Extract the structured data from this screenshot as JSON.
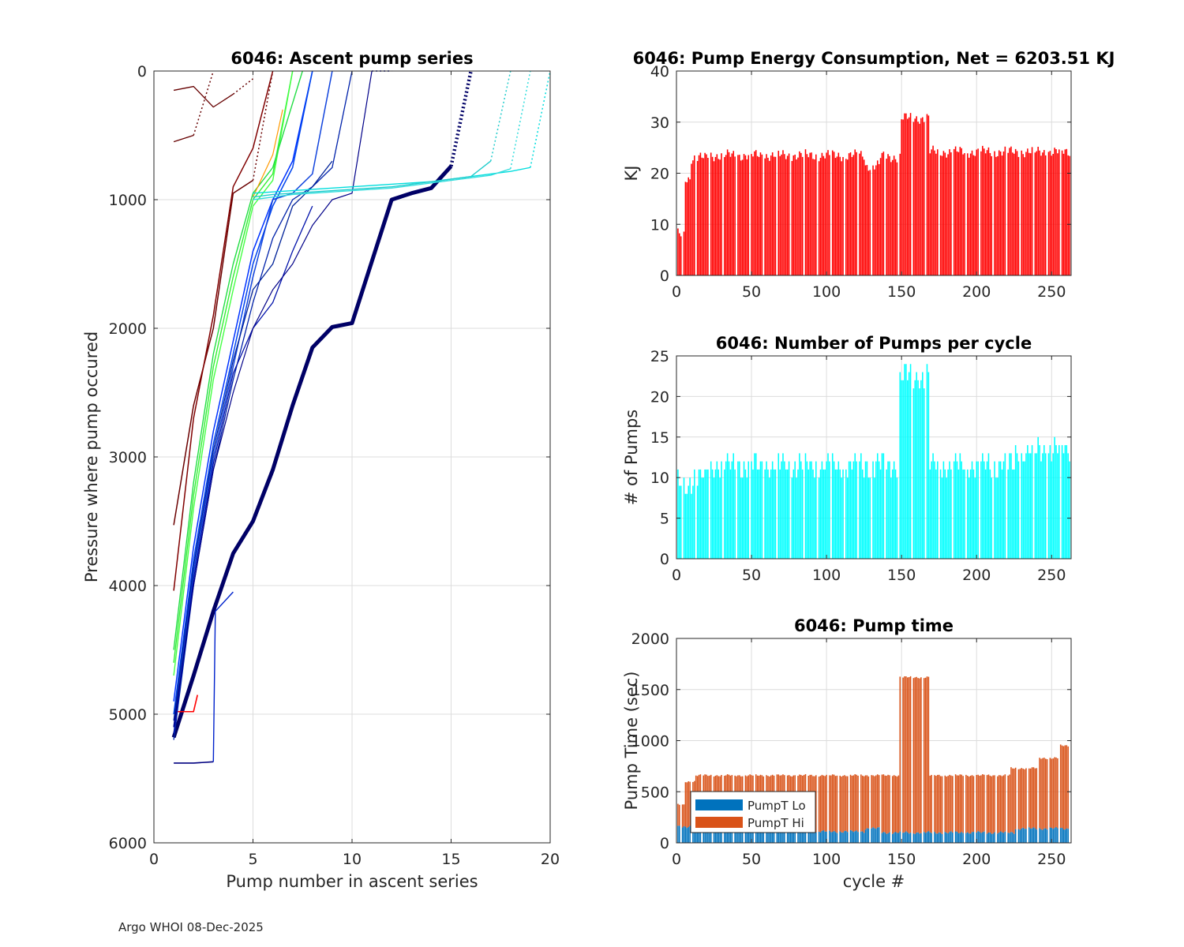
{
  "footer": "Argo WHOI 08-Dec-2025",
  "chart_data": [
    {
      "id": "ascent",
      "type": "line",
      "title": "6046: Ascent pump series",
      "xlabel": "Pump number in ascent series",
      "ylabel": "Pressure where pump occured",
      "xlim": [
        0,
        20
      ],
      "ylim": [
        0,
        6000
      ],
      "y_reversed": true,
      "xticks": [
        0,
        5,
        10,
        15,
        20
      ],
      "yticks": [
        0,
        1000,
        2000,
        3000,
        4000,
        5000,
        6000
      ],
      "grid": true,
      "series": [
        {
          "name": "thick-navy",
          "color": "#000066",
          "width": 5,
          "x": [
            1,
            2,
            3,
            4,
            5,
            6,
            7,
            8,
            9,
            10,
            11,
            12,
            13,
            14,
            15
          ],
          "y": [
            5180,
            4700,
            4200,
            3750,
            3500,
            3100,
            2600,
            2150,
            1990,
            1960,
            1480,
            1000,
            950,
            910,
            740
          ],
          "dotted_to": {
            "x": 16,
            "y": 0
          }
        },
        {
          "name": "navy-low",
          "color": "#000080",
          "width": 1.6,
          "x": [
            1,
            2,
            3
          ],
          "y": [
            5380,
            5380,
            5370
          ]
        },
        {
          "name": "blue-edge",
          "color": "#0022cc",
          "width": 1.4,
          "x": [
            3,
            3.1,
            4
          ],
          "y": [
            5370,
            4200,
            4050
          ]
        },
        {
          "name": "red-1",
          "color": "#ff0000",
          "width": 1.6,
          "x": [
            1,
            2,
            2.2
          ],
          "y": [
            4980,
            4980,
            4850
          ]
        },
        {
          "name": "maroon-1",
          "color": "#6b0000",
          "width": 1.5,
          "x": [
            1,
            2,
            3,
            4,
            5
          ],
          "y": [
            3530,
            2600,
            2000,
            950,
            850
          ],
          "dotted_to": {
            "x": 6,
            "y": 0
          }
        },
        {
          "name": "maroon-2",
          "color": "#800000",
          "width": 1.5,
          "x": [
            1,
            2,
            3,
            4,
            5,
            6
          ],
          "y": [
            4040,
            2700,
            1900,
            900,
            600,
            0
          ]
        },
        {
          "name": "maroon-3",
          "color": "#660000",
          "width": 1.3,
          "x": [
            1,
            2,
            3,
            4
          ],
          "y": [
            150,
            120,
            280,
            180
          ],
          "dotted_to": {
            "x": 5,
            "y": 60
          }
        },
        {
          "name": "maroon-4",
          "color": "#660000",
          "width": 1.3,
          "x": [
            1,
            2
          ],
          "y": [
            550,
            500
          ],
          "dotted_to": {
            "x": 3,
            "y": 0
          }
        },
        {
          "name": "green-1",
          "color": "#33ee33",
          "width": 1.4,
          "x": [
            1,
            2,
            3,
            4,
            5,
            6,
            7
          ],
          "y": [
            4600,
            3300,
            2300,
            1600,
            1000,
            800,
            0
          ]
        },
        {
          "name": "green-2",
          "color": "#44ff44",
          "width": 1.4,
          "x": [
            1,
            2,
            3,
            4,
            5,
            6,
            7
          ],
          "y": [
            4700,
            3400,
            2400,
            1700,
            1050,
            850,
            0
          ]
        },
        {
          "name": "green-3",
          "color": "#22dd44",
          "width": 1.4,
          "x": [
            1,
            2,
            3,
            4,
            5,
            6,
            7.5
          ],
          "y": [
            4500,
            3200,
            2200,
            1500,
            950,
            750,
            0
          ]
        },
        {
          "name": "orange-1",
          "color": "#ff9900",
          "width": 1.2,
          "x": [
            5,
            6,
            6.5
          ],
          "y": [
            980,
            650,
            300
          ]
        },
        {
          "name": "blue-1",
          "color": "#0033ff",
          "width": 1.5,
          "x": [
            1,
            2,
            3,
            4,
            5,
            6,
            7,
            8
          ],
          "y": [
            4900,
            3700,
            2800,
            2100,
            1400,
            1000,
            700,
            0
          ]
        },
        {
          "name": "blue-2",
          "color": "#0044ee",
          "width": 1.5,
          "x": [
            1,
            2,
            3,
            4,
            5,
            6,
            7,
            8
          ],
          "y": [
            5000,
            3800,
            2900,
            2200,
            1500,
            1050,
            750,
            0
          ]
        },
        {
          "name": "blue-3",
          "color": "#1144dd",
          "width": 1.5,
          "x": [
            1,
            2,
            3,
            4,
            5,
            6,
            7,
            8,
            9
          ],
          "y": [
            5100,
            3900,
            3000,
            2300,
            1600,
            1000,
            950,
            800,
            0
          ]
        },
        {
          "name": "blue-4",
          "color": "#0022aa",
          "width": 1.3,
          "x": [
            1,
            2,
            3,
            4,
            5,
            6,
            7,
            8,
            9,
            10
          ],
          "y": [
            5200,
            4000,
            3100,
            2400,
            1800,
            1300,
            1000,
            900,
            750,
            0
          ]
        },
        {
          "name": "blue-5",
          "color": "#002299",
          "width": 1.3,
          "x": [
            1,
            2,
            3,
            4,
            5,
            6,
            7,
            8,
            9
          ],
          "y": [
            5050,
            3850,
            2950,
            2250,
            1700,
            1500,
            1050,
            900,
            700
          ]
        },
        {
          "name": "blue-6",
          "color": "#0011aa",
          "width": 1.3,
          "x": [
            1,
            2,
            3,
            4,
            5,
            6,
            7,
            8
          ],
          "y": [
            5150,
            3950,
            3050,
            2350,
            2000,
            1800,
            1400,
            1050
          ]
        },
        {
          "name": "navy-2",
          "color": "#000088",
          "width": 1.2,
          "x": [
            1,
            2,
            3,
            4,
            5,
            6,
            7,
            8,
            9,
            10,
            11
          ],
          "y": [
            5100,
            4000,
            3100,
            2500,
            2000,
            1700,
            1500,
            1200,
            1000,
            950,
            0
          ],
          "dotted_to": {
            "x": 12,
            "y": 0
          }
        },
        {
          "name": "cyan-1",
          "color": "#00dddd",
          "width": 1.4,
          "x": [
            5,
            6,
            7,
            8,
            9,
            10,
            11,
            12,
            13,
            14,
            15,
            16,
            17,
            18,
            19
          ],
          "y": [
            950,
            940,
            930,
            920,
            910,
            900,
            890,
            880,
            870,
            860,
            840,
            820,
            800,
            780,
            750
          ],
          "dotted_to": {
            "x": 20,
            "y": 0
          }
        },
        {
          "name": "cyan-2",
          "color": "#22cccc",
          "width": 1.4,
          "x": [
            5,
            6,
            7,
            8,
            9,
            10,
            11,
            12,
            13,
            14,
            15,
            16,
            17
          ],
          "y": [
            980,
            960,
            950,
            940,
            930,
            920,
            910,
            900,
            880,
            860,
            840,
            820,
            700
          ],
          "dotted_to": {
            "x": 18,
            "y": 0
          }
        },
        {
          "name": "cyan-3",
          "color": "#33dddd",
          "width": 1.4,
          "x": [
            5,
            6,
            7,
            8,
            9,
            10,
            11,
            12,
            13,
            14,
            15,
            16,
            17,
            18
          ],
          "y": [
            1000,
            980,
            960,
            950,
            940,
            930,
            920,
            910,
            890,
            870,
            850,
            830,
            810,
            760
          ],
          "dotted_to": {
            "x": 19,
            "y": 0
          }
        }
      ]
    },
    {
      "id": "energy",
      "type": "bar",
      "title": "6046: Pump Energy Consumption,  Net = 6203.51 KJ",
      "xlabel": "",
      "ylabel": "KJ",
      "xlim": [
        0,
        263
      ],
      "ylim": [
        0,
        40
      ],
      "xticks": [
        0,
        50,
        100,
        150,
        200,
        250
      ],
      "yticks": [
        0,
        10,
        20,
        30,
        40
      ],
      "grid": true,
      "color": "#ff0000",
      "num_cycles": 262,
      "baseline": 23.5,
      "segments": [
        {
          "from": 1,
          "to": 5,
          "value": 8
        },
        {
          "from": 6,
          "to": 9,
          "value": 19
        },
        {
          "from": 10,
          "to": 20,
          "value": 23
        },
        {
          "from": 21,
          "to": 125,
          "value": 23.5
        },
        {
          "from": 126,
          "to": 135,
          "value": 21.5
        },
        {
          "from": 136,
          "to": 149,
          "value": 23.2
        },
        {
          "from": 150,
          "to": 168,
          "value": 30.8
        },
        {
          "from": 169,
          "to": 262,
          "value": 24.2
        }
      ]
    },
    {
      "id": "pumps",
      "type": "bar",
      "title": "6046: Number of Pumps per cycle",
      "xlabel": "",
      "ylabel": "# of Pumps",
      "xlim": [
        0,
        263
      ],
      "ylim": [
        0,
        25
      ],
      "xticks": [
        0,
        50,
        100,
        150,
        200,
        250
      ],
      "yticks": [
        0,
        5,
        10,
        15,
        20,
        25
      ],
      "grid": true,
      "color": "#00ffff",
      "num_cycles": 262,
      "segments": [
        {
          "from": 1,
          "to": 8,
          "value": 9
        },
        {
          "from": 9,
          "to": 20,
          "value": 10
        },
        {
          "from": 21,
          "to": 148,
          "value": 11.5
        },
        {
          "from": 149,
          "to": 168,
          "value": 22.5
        },
        {
          "from": 169,
          "to": 225,
          "value": 11.5
        },
        {
          "from": 226,
          "to": 240,
          "value": 13
        },
        {
          "from": 241,
          "to": 262,
          "value": 13.5
        }
      ]
    },
    {
      "id": "pumptime",
      "type": "bar",
      "stacked": true,
      "title": "6046: Pump time",
      "xlabel": "cycle #",
      "ylabel": "Pump Time (sec)",
      "xlim": [
        0,
        263
      ],
      "ylim": [
        0,
        2000
      ],
      "xticks": [
        0,
        50,
        100,
        150,
        200,
        250
      ],
      "yticks": [
        0,
        500,
        1000,
        1500,
        2000
      ],
      "grid": true,
      "legend": {
        "location": "bottom-left",
        "entries": [
          {
            "name": "PumpT Lo",
            "color": "#0072bd"
          },
          {
            "name": "PumpT Hi",
            "color": "#d95319"
          }
        ]
      },
      "num_cycles": 262,
      "lo_segments": [
        {
          "from": 1,
          "to": 10,
          "value": 160
        },
        {
          "from": 11,
          "to": 125,
          "value": 110
        },
        {
          "from": 126,
          "to": 135,
          "value": 140
        },
        {
          "from": 136,
          "to": 225,
          "value": 100
        },
        {
          "from": 226,
          "to": 262,
          "value": 140
        }
      ],
      "total_segments": [
        {
          "from": 1,
          "to": 5,
          "value": 370
        },
        {
          "from": 6,
          "to": 12,
          "value": 600
        },
        {
          "from": 13,
          "to": 148,
          "value": 660
        },
        {
          "from": 149,
          "to": 168,
          "value": 1620
        },
        {
          "from": 169,
          "to": 222,
          "value": 660
        },
        {
          "from": 223,
          "to": 240,
          "value": 730
        },
        {
          "from": 241,
          "to": 255,
          "value": 830
        },
        {
          "from": 256,
          "to": 262,
          "value": 950
        }
      ]
    }
  ]
}
